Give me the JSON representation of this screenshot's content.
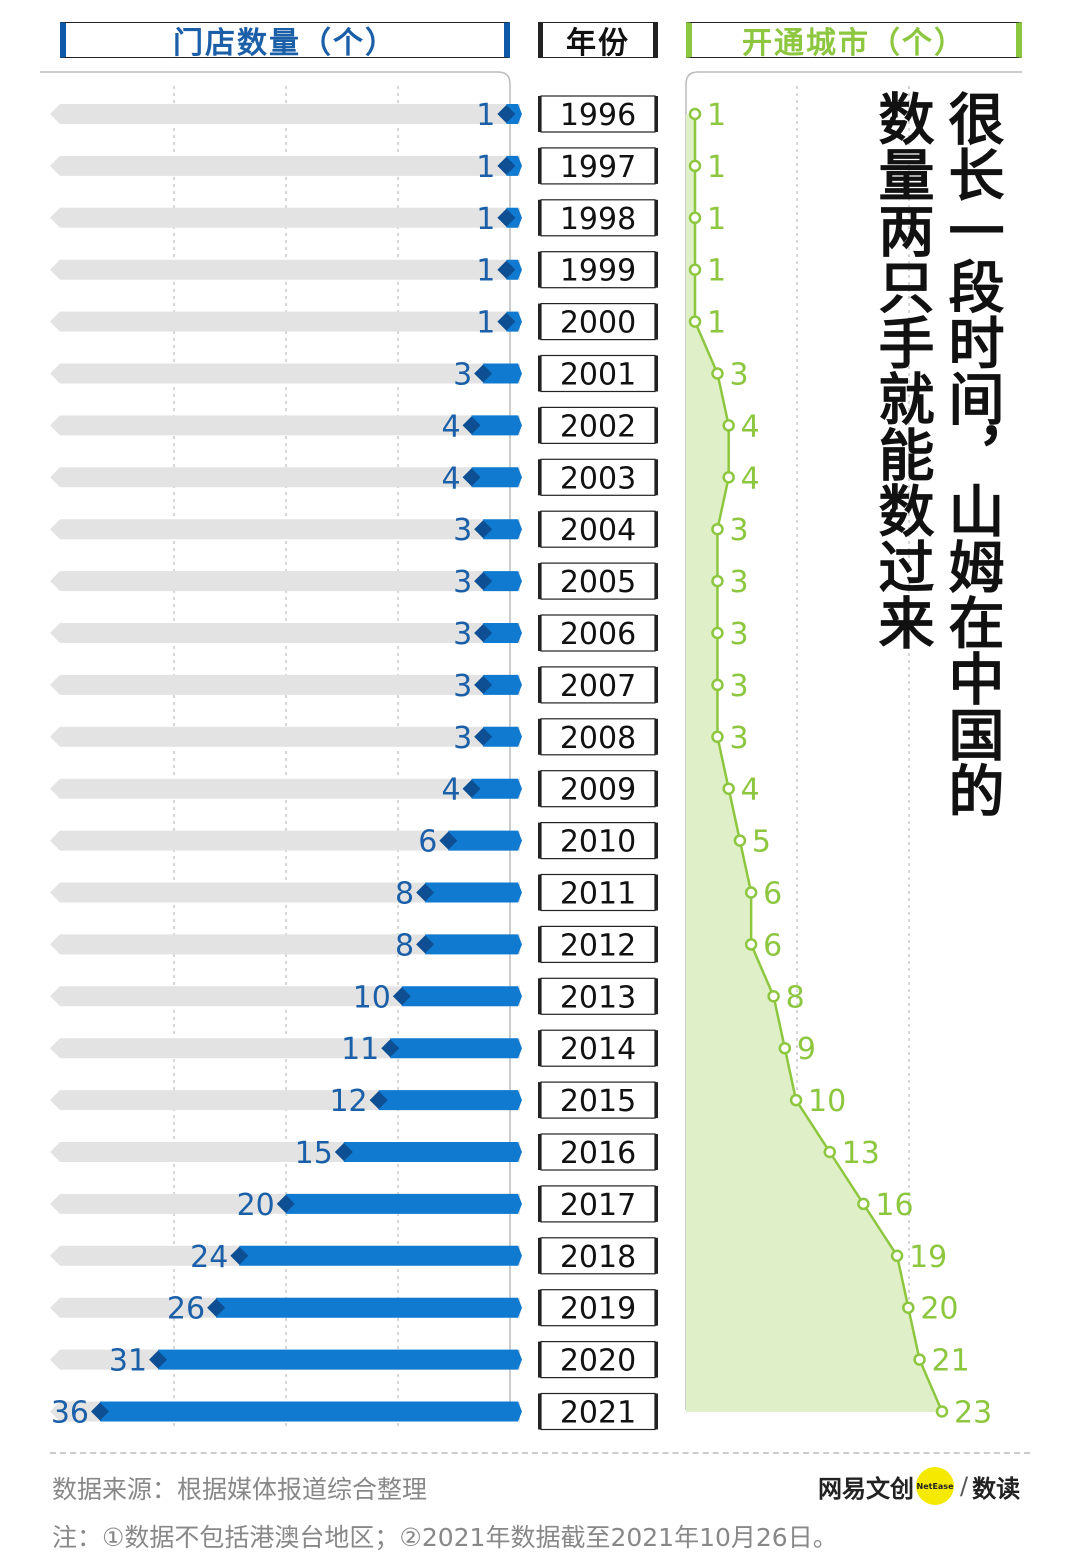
{
  "headers": {
    "stores": "门店数量（个）",
    "year": "年份",
    "cities": "开通城市（个）"
  },
  "headline": {
    "line1": "很长一段时间，山姆在中国的",
    "line2": "数量两只手就能数过来"
  },
  "footer": {
    "source": "数据来源：根据媒体报道综合整理",
    "note": "注：①数据不包括港澳台地区；②2021年数据截至2021年10月26日。",
    "brand_left": "网易文创",
    "brand_badge": "NetEase",
    "brand_slash": "/",
    "brand_right": "数读"
  },
  "colors": {
    "store_bar": "#0f7ad0",
    "store_label": "#1a5fa8",
    "track": "#e3e3e3",
    "city_line": "#8dc63f",
    "city_fill": "#dff0c8"
  },
  "chart_data": {
    "type": "bar",
    "categories": [
      "1996",
      "1997",
      "1998",
      "1999",
      "2000",
      "2001",
      "2002",
      "2003",
      "2004",
      "2005",
      "2006",
      "2007",
      "2008",
      "2009",
      "2010",
      "2011",
      "2012",
      "2013",
      "2014",
      "2015",
      "2016",
      "2017",
      "2018",
      "2019",
      "2020",
      "2021"
    ],
    "series": [
      {
        "name": "门店数量（个）",
        "type": "bar",
        "values": [
          1,
          1,
          1,
          1,
          1,
          3,
          4,
          4,
          3,
          3,
          3,
          3,
          3,
          4,
          6,
          8,
          8,
          10,
          11,
          12,
          15,
          20,
          24,
          26,
          31,
          36
        ]
      },
      {
        "name": "开通城市（个）",
        "type": "area",
        "values": [
          1,
          1,
          1,
          1,
          1,
          3,
          4,
          4,
          3,
          3,
          3,
          3,
          3,
          4,
          5,
          6,
          6,
          8,
          9,
          10,
          13,
          16,
          19,
          20,
          21,
          23
        ]
      }
    ],
    "stores_axis_max": 36,
    "cities_axis_max": 23,
    "grid": true
  }
}
